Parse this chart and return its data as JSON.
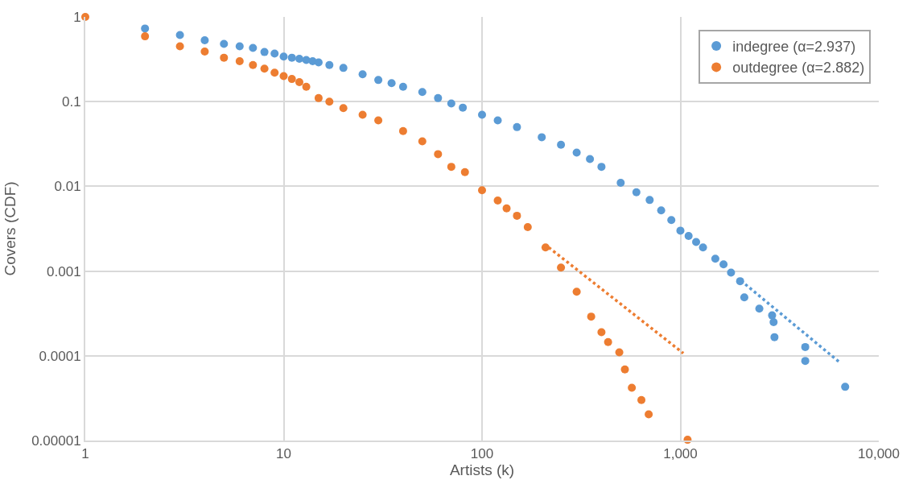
{
  "chart_data": {
    "type": "scatter",
    "xlabel": "Artists (k)",
    "ylabel": "Covers (CDF)",
    "log": "xy",
    "grid": true,
    "legend": "top right",
    "xlim": [
      1,
      10000
    ],
    "xticks": [
      1,
      10,
      100,
      {
        "value": 1000,
        "label": "1,000"
      },
      {
        "value": 10000,
        "label": "10,000"
      }
    ],
    "ylim": [
      1e-05,
      1
    ],
    "yticks": [
      1,
      0.1,
      0.01,
      0.001,
      0.0001,
      {
        "value": 1e-05,
        "label": "0.00001"
      }
    ],
    "series": [
      {
        "name": "indegree (α=2.937)",
        "marker": "circle",
        "color": "#5b9bd5",
        "x": [
          2,
          3,
          4,
          5,
          6,
          7,
          8,
          9,
          10,
          11,
          12,
          13,
          14,
          15,
          17,
          20,
          25,
          30,
          35,
          40,
          50,
          60,
          70,
          80,
          100,
          120,
          150,
          200,
          250,
          300,
          350,
          400,
          500,
          600,
          700,
          800,
          900,
          1000,
          1100,
          1200,
          1300,
          1500,
          1650,
          1800,
          2000,
          2100,
          2500,
          2900,
          2950,
          2980,
          4260,
          4260,
          6770
        ],
        "values": [
          0.73,
          0.61,
          0.53,
          0.48,
          0.45,
          0.43,
          0.385,
          0.37,
          0.34,
          0.33,
          0.32,
          0.31,
          0.3,
          0.29,
          0.27,
          0.25,
          0.21,
          0.18,
          0.165,
          0.15,
          0.13,
          0.11,
          0.095,
          0.085,
          0.07,
          0.06,
          0.05,
          0.038,
          0.031,
          0.025,
          0.021,
          0.017,
          0.011,
          0.0085,
          0.0069,
          0.0052,
          0.004,
          0.003,
          0.0026,
          0.0022,
          0.0019,
          0.0014,
          0.0012,
          0.00096,
          0.00076,
          0.00049,
          0.00036,
          0.0003,
          0.00025,
          0.000166,
          0.000127,
          8.7e-05,
          4.3e-05
        ]
      },
      {
        "name": "outdegree (α=2.882)",
        "marker": "circle",
        "color": "#ed7d31",
        "x": [
          1,
          2,
          3,
          4,
          5,
          6,
          7,
          8,
          9,
          10,
          11,
          12,
          13,
          15,
          17,
          20,
          25,
          30,
          40,
          50,
          60,
          70,
          82,
          100,
          120,
          133,
          150,
          170,
          209,
          250,
          300,
          355,
          400,
          432,
          492,
          525,
          569,
          636,
          692,
          1087
        ],
        "values": [
          1,
          0.59,
          0.45,
          0.39,
          0.33,
          0.3,
          0.27,
          0.245,
          0.22,
          0.2,
          0.185,
          0.17,
          0.15,
          0.11,
          0.1,
          0.084,
          0.07,
          0.06,
          0.045,
          0.034,
          0.024,
          0.017,
          0.0147,
          0.009,
          0.0068,
          0.0055,
          0.0045,
          0.0033,
          0.0019,
          0.0011,
          0.00057,
          0.00029,
          0.00019,
          0.000145,
          0.00011,
          6.9e-05,
          4.2e-05,
          3e-05,
          2.04e-05,
          1.02e-05
        ]
      },
      {
        "type": "line",
        "line_style": "dotted",
        "color": "#5b9bd5",
        "x": [
          2020,
          6300
        ],
        "values": [
          0.00077,
          8.5e-05
        ]
      },
      {
        "type": "line",
        "line_style": "dotted",
        "color": "#ed7d31",
        "x": [
          217,
          1035
        ],
        "values": [
          0.0019,
          0.000107
        ]
      }
    ]
  }
}
